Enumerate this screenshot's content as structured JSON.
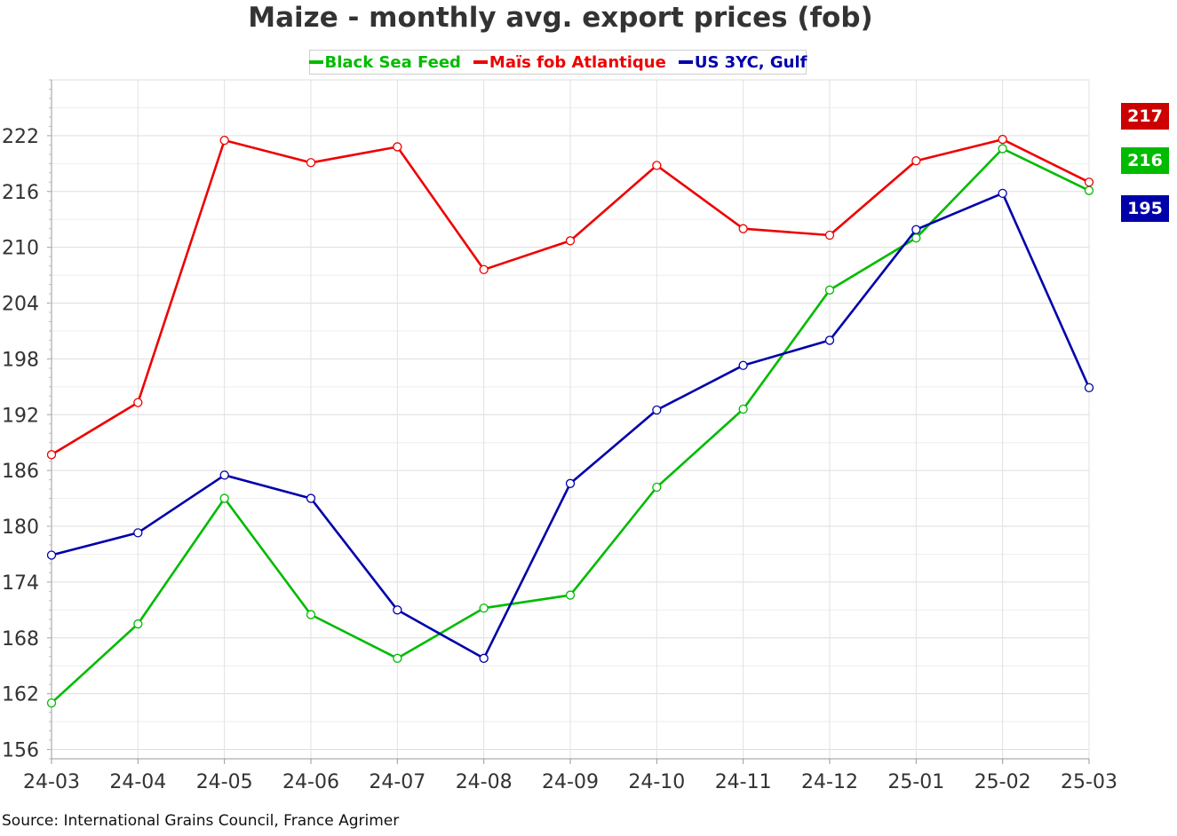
{
  "chart_data": {
    "type": "line",
    "title": "Maize - monthly avg. export prices (fob)",
    "x": [
      "24-03",
      "24-04",
      "24-05",
      "24-06",
      "24-07",
      "24-08",
      "24-09",
      "24-10",
      "24-11",
      "24-12",
      "25-01",
      "25-02",
      "25-03"
    ],
    "ylim": [
      155,
      228
    ],
    "yticks": [
      156,
      162,
      168,
      174,
      180,
      186,
      192,
      198,
      204,
      210,
      216,
      222
    ],
    "grid": true,
    "legend_position": "top-center",
    "series": [
      {
        "name": "Black Sea Feed",
        "color": "#00bb00",
        "values": [
          161,
          169.5,
          183,
          170.5,
          165.8,
          171.2,
          172.6,
          184.2,
          192.6,
          205.4,
          211,
          220.6,
          216.1
        ]
      },
      {
        "name": "Maïs fob Atlantique",
        "color": "#ee0000",
        "values": [
          187.7,
          193.3,
          221.5,
          219.1,
          220.8,
          207.6,
          210.7,
          218.8,
          212,
          211.3,
          219.3,
          221.6,
          217
        ]
      },
      {
        "name": "US 3YC, Gulf",
        "color": "#0000aa",
        "values": [
          176.9,
          179.3,
          185.5,
          183,
          171,
          165.8,
          184.6,
          192.5,
          197.3,
          200,
          211.9,
          215.8,
          194.9
        ]
      }
    ],
    "last_value_badges": [
      {
        "label": "217",
        "color": "#cc0000"
      },
      {
        "label": "216",
        "color": "#00bb00"
      },
      {
        "label": "195",
        "color": "#0000aa"
      }
    ]
  },
  "source": "Source: International Grains Council, France Agrimer"
}
